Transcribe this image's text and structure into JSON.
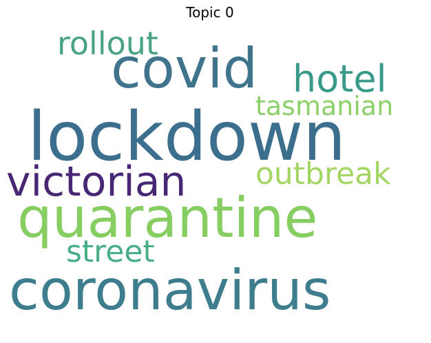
{
  "title": "Topic 0",
  "words": {
    "lockdown": {
      "text": "lockdown",
      "color": "#3c6e8e"
    },
    "coronavirus": {
      "text": "coronavirus",
      "color": "#3d7d8d"
    },
    "quarantine": {
      "text": "quarantine",
      "color": "#86cd62"
    },
    "covid": {
      "text": "covid",
      "color": "#3f748c"
    },
    "victorian": {
      "text": "victorian",
      "color": "#482874"
    },
    "hotel": {
      "text": "hotel",
      "color": "#3a9a89"
    },
    "rollout": {
      "text": "rollout",
      "color": "#4aa284"
    },
    "outbreak": {
      "text": "outbreak",
      "color": "#a3d562"
    },
    "street": {
      "text": "street",
      "color": "#47ad84"
    },
    "tasmanian": {
      "text": "tasmanian",
      "color": "#8cd06a"
    }
  }
}
